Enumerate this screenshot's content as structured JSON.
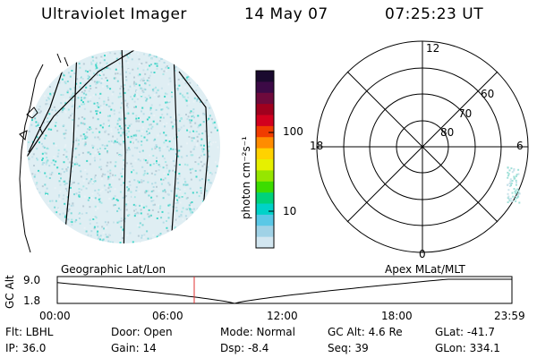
{
  "header": {
    "instrument": "Ultraviolet Imager",
    "date": "14 May 07",
    "time": "07:25:23 UT"
  },
  "colorbar": {
    "unit_label": "photon cm⁻²s⁻¹",
    "tick_labels": [
      "100",
      "10"
    ],
    "colors": [
      "#1a0a2e",
      "#3c0a46",
      "#6e0a3c",
      "#a0001e",
      "#d2001e",
      "#f03c00",
      "#ff8c00",
      "#ffd200",
      "#e6f000",
      "#96e600",
      "#3cdc00",
      "#00d27a",
      "#00d2c8",
      "#5ac8e6",
      "#a0d2e6",
      "#d2e6f0"
    ]
  },
  "polar": {
    "mlt_labels": [
      "12",
      "18",
      "6",
      "0"
    ],
    "lat_labels": [
      "60",
      "70",
      "80"
    ]
  },
  "timeline": {
    "left_label": "Geographic Lat/Lon",
    "right_label": "Apex MLat/MLT",
    "axis_label": "GC Alt",
    "y_ticks": [
      "9.0",
      "1.8"
    ],
    "x_ticks": [
      "00:00",
      "06:00",
      "12:00",
      "18:00",
      "23:59"
    ],
    "current_time_marker": "07:25"
  },
  "params": {
    "filter": "Flt: LBHL",
    "ip": "IP: 36.0",
    "door": "Door: Open",
    "gain": "Gain: 14",
    "mode": "Mode: Normal",
    "dsp": "Dsp:   -8.4",
    "gc_alt": "GC Alt: 4.6 Re",
    "seq": "Seq: 39",
    "glat": "GLat: -41.7",
    "glon": "GLon: 334.1"
  }
}
